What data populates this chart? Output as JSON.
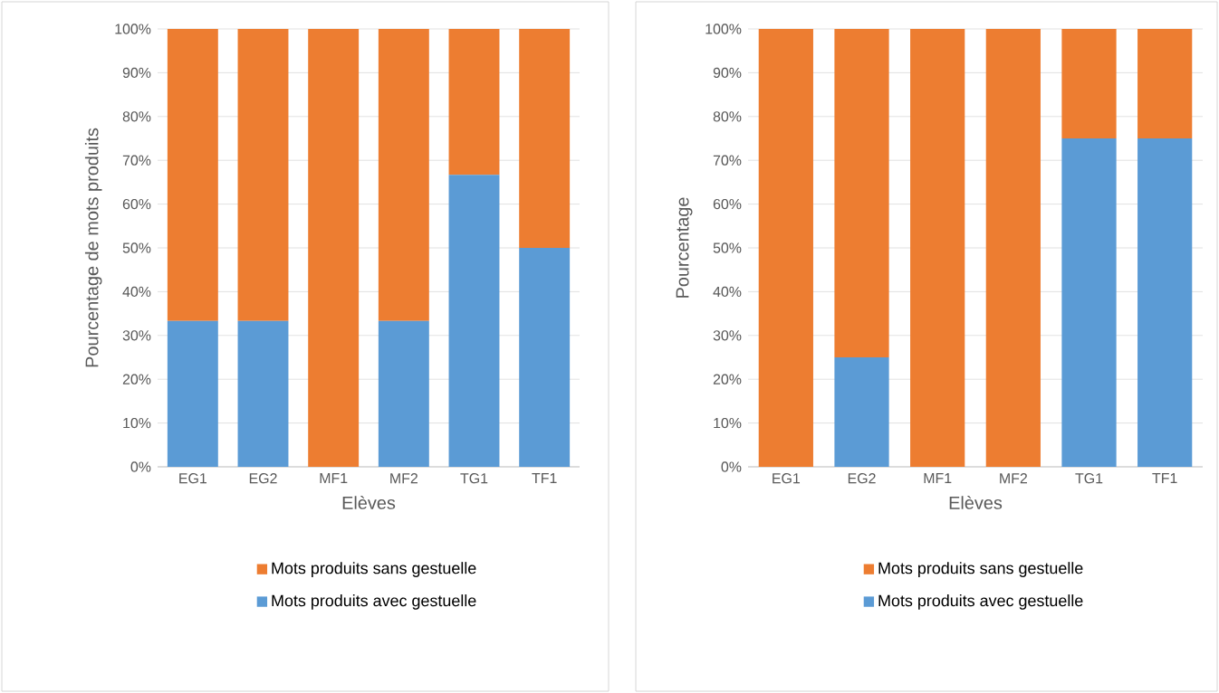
{
  "chart_data": [
    {
      "type": "bar",
      "stacked": true,
      "ylabel": "Pourcentage de mots produits",
      "xlabel": "Elèves",
      "categories": [
        "EG1",
        "EG2",
        "MF1",
        "MF2",
        "TG1",
        "TF1"
      ],
      "series": [
        {
          "name": "Mots produits avec gestuelle",
          "color": "#5b9bd5",
          "values": [
            33.3,
            33.3,
            0,
            33.3,
            66.7,
            50
          ]
        },
        {
          "name": "Mots produits sans gestuelle",
          "color": "#ed7d31",
          "values": [
            66.7,
            66.7,
            100,
            66.7,
            33.3,
            50
          ]
        }
      ],
      "ylim": [
        0,
        100
      ],
      "yticks": [
        {
          "value": 0,
          "label": "0%"
        },
        {
          "value": 10,
          "label": "10%"
        },
        {
          "value": 20,
          "label": "20%"
        },
        {
          "value": 30,
          "label": "30%"
        },
        {
          "value": 40,
          "label": "40%"
        },
        {
          "value": 50,
          "label": "50%"
        },
        {
          "value": 60,
          "label": "60%"
        },
        {
          "value": 70,
          "label": "70%"
        },
        {
          "value": 80,
          "label": "80%"
        },
        {
          "value": 90,
          "label": "90%"
        },
        {
          "value": 100,
          "label": "100%"
        }
      ],
      "grid": "y",
      "legend": "bottom"
    },
    {
      "type": "bar",
      "stacked": true,
      "ylabel": "Pourcentage",
      "xlabel": "Elèves",
      "categories": [
        "EG1",
        "EG2",
        "MF1",
        "MF2",
        "TG1",
        "TF1"
      ],
      "series": [
        {
          "name": "Mots produits avec gestuelle",
          "color": "#5b9bd5",
          "values": [
            0,
            25,
            0,
            0,
            75,
            75
          ]
        },
        {
          "name": "Mots produits sans gestuelle",
          "color": "#ed7d31",
          "values": [
            100,
            75,
            100,
            100,
            25,
            25
          ]
        }
      ],
      "ylim": [
        0,
        100
      ],
      "yticks": [
        {
          "value": 0,
          "label": "0%"
        },
        {
          "value": 10,
          "label": "10%"
        },
        {
          "value": 20,
          "label": "20%"
        },
        {
          "value": 30,
          "label": "30%"
        },
        {
          "value": 40,
          "label": "40%"
        },
        {
          "value": 50,
          "label": "50%"
        },
        {
          "value": 60,
          "label": "60%"
        },
        {
          "value": 70,
          "label": "70%"
        },
        {
          "value": 80,
          "label": "80%"
        },
        {
          "value": 90,
          "label": "90%"
        },
        {
          "value": 100,
          "label": "100%"
        }
      ],
      "grid": "y",
      "legend": "bottom"
    }
  ]
}
